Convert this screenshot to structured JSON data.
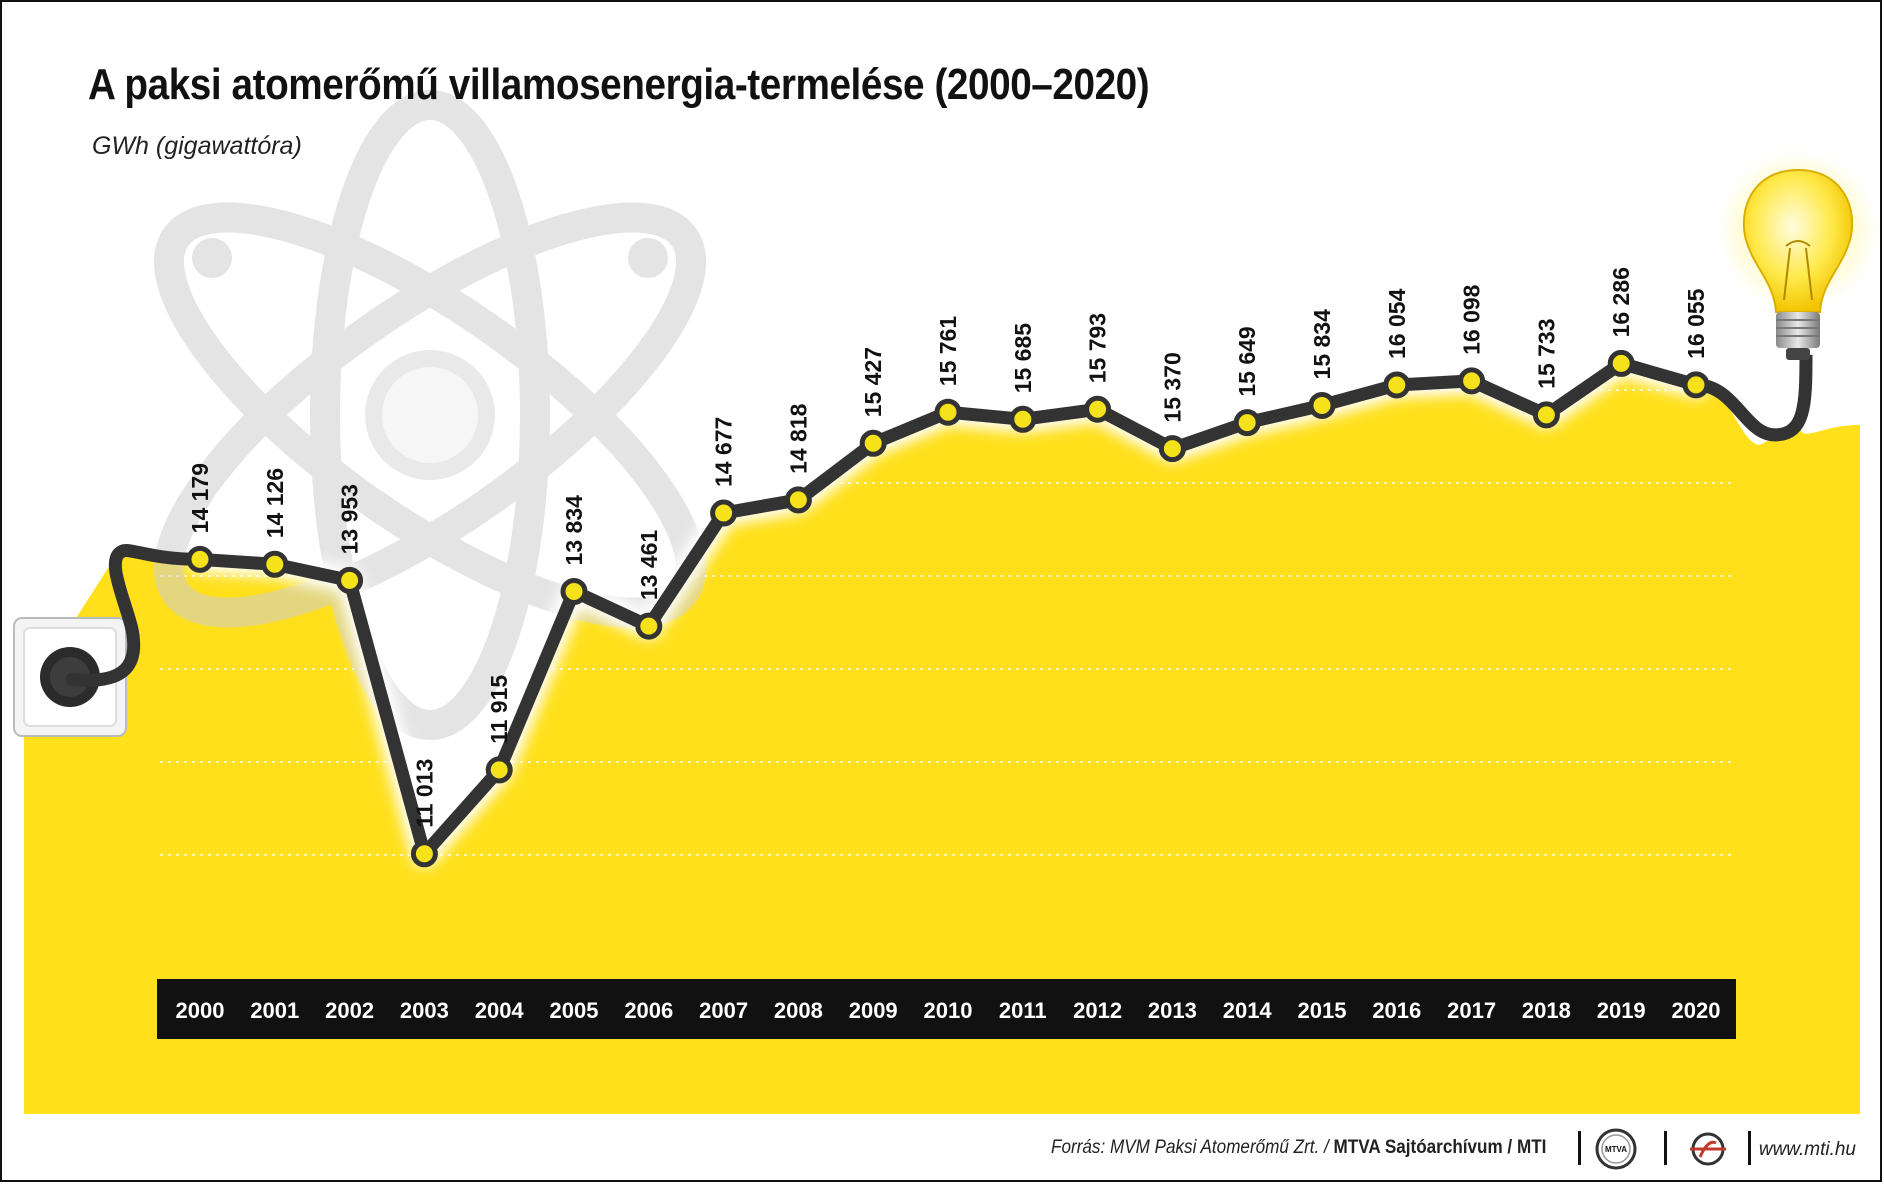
{
  "header": {
    "title": "A paksi atomerőmű villamosenergia-termelése (2000–2020)",
    "subtitle": "GWh (gigawattóra)"
  },
  "footer": {
    "source_prefix": "Forrás: MVM Paksi Atomerőmű Zrt. / ",
    "source_archive": "MTVA Sajtóarchívum",
    "source_sep": " / ",
    "source_agency": "MTI",
    "mtva_logo_text": "MTVA",
    "website": "www.mti.hu"
  },
  "colors": {
    "background_fill": "#FFE01B",
    "line": "#333333",
    "marker": "#F5E21A",
    "axis_bar": "#111111"
  },
  "icons": [
    "atom-watermark",
    "wall-socket-plug",
    "light-bulb"
  ],
  "chart_data": {
    "type": "line",
    "title": "A paksi atomerőmű villamosenergia-termelése (2000–2020)",
    "ylabel": "GWh (gigawattóra)",
    "x": [
      "2000",
      "2001",
      "2002",
      "2003",
      "2004",
      "2005",
      "2006",
      "2007",
      "2008",
      "2009",
      "2010",
      "2011",
      "2012",
      "2013",
      "2014",
      "2015",
      "2016",
      "2017",
      "2018",
      "2019",
      "2020"
    ],
    "values": [
      14179,
      14126,
      13953,
      11013,
      11915,
      13834,
      13461,
      14677,
      14818,
      15427,
      15761,
      15685,
      15793,
      15370,
      15649,
      15834,
      16054,
      16098,
      15733,
      16286,
      16055
    ],
    "data_labels": [
      "14 179",
      "14 126",
      "13 953",
      "11 013",
      "11 915",
      "13 834",
      "13 461",
      "14 677",
      "14 818",
      "15 427",
      "15 761",
      "15 685",
      "15 793",
      "15 370",
      "15 649",
      "15 834",
      "16 054",
      "16 098",
      "15 733",
      "16 286",
      "16 055"
    ],
    "grid": true
  }
}
